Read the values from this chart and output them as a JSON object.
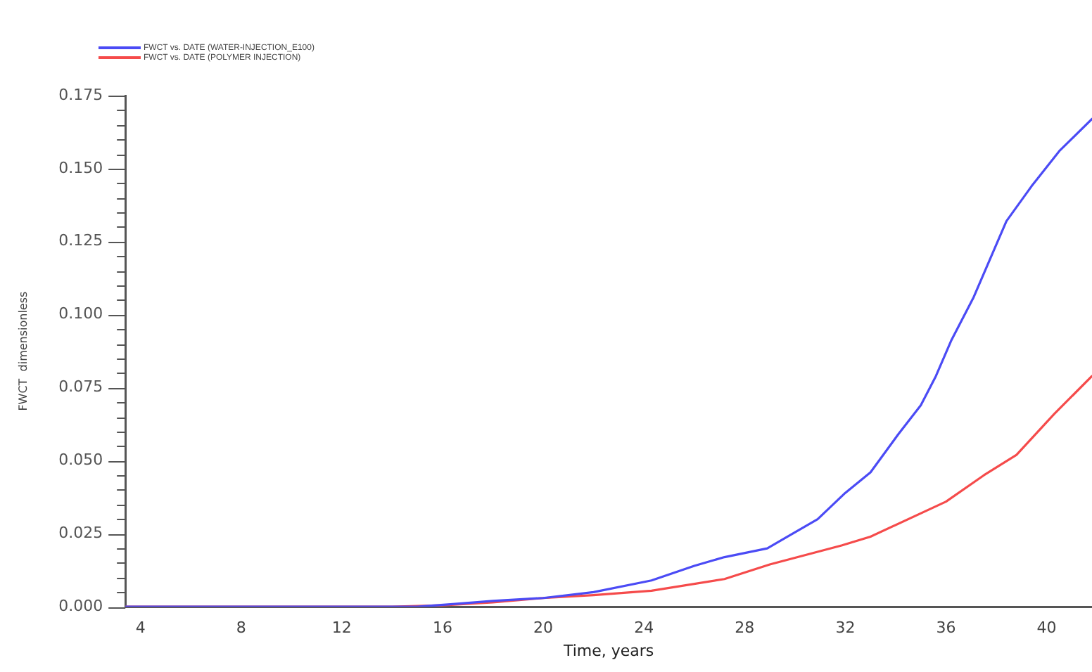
{
  "chart_data": {
    "type": "line",
    "xlabel": "Time, years",
    "ylabel": "FWCT  dimensionless",
    "legend": "top left",
    "grid": false,
    "marker": "none",
    "line_style": "solid",
    "xlim": [
      3.4,
      41.8
    ],
    "xticks": [
      4,
      8,
      12,
      16,
      20,
      24,
      28,
      32,
      36,
      40
    ],
    "ylim": [
      0,
      0.175
    ],
    "yticks": [
      {
        "value": 0,
        "label": "0.000"
      },
      {
        "value": 0.005,
        "label": null
      },
      {
        "value": 0.01,
        "label": null
      },
      {
        "value": 0.015,
        "label": null
      },
      {
        "value": 0.02,
        "label": null
      },
      {
        "value": 0.025,
        "label": "0.025"
      },
      {
        "value": 0.03,
        "label": null
      },
      {
        "value": 0.035,
        "label": null
      },
      {
        "value": 0.04,
        "label": null
      },
      {
        "value": 0.045,
        "label": null
      },
      {
        "value": 0.05,
        "label": "0.050"
      },
      {
        "value": 0.055,
        "label": null
      },
      {
        "value": 0.06,
        "label": null
      },
      {
        "value": 0.065,
        "label": null
      },
      {
        "value": 0.07,
        "label": null
      },
      {
        "value": 0.075,
        "label": "0.075"
      },
      {
        "value": 0.08,
        "label": null
      },
      {
        "value": 0.085,
        "label": null
      },
      {
        "value": 0.09,
        "label": null
      },
      {
        "value": 0.095,
        "label": null
      },
      {
        "value": 0.1,
        "label": "0.100"
      },
      {
        "value": 0.105,
        "label": null
      },
      {
        "value": 0.11,
        "label": null
      },
      {
        "value": 0.115,
        "label": null
      },
      {
        "value": 0.12,
        "label": null
      },
      {
        "value": 0.125,
        "label": "0.125"
      },
      {
        "value": 0.13,
        "label": null
      },
      {
        "value": 0.135,
        "label": null
      },
      {
        "value": 0.14,
        "label": null
      },
      {
        "value": 0.145,
        "label": null
      },
      {
        "value": 0.15,
        "label": "0.150"
      },
      {
        "value": 0.155,
        "label": null
      },
      {
        "value": 0.16,
        "label": null
      },
      {
        "value": 0.165,
        "label": null
      },
      {
        "value": 0.17,
        "label": null
      },
      {
        "value": 0.175,
        "label": "0.175"
      }
    ],
    "series": [
      {
        "name": "FWCT vs. DATE (WATER-INJECTION_E100)",
        "color": "#4b4bf5",
        "x": [
          3.4,
          14,
          15,
          16.5,
          18,
          20,
          22,
          24.3,
          26,
          27.2,
          28.9,
          30.9,
          32,
          33,
          34.1,
          35,
          35.6,
          36.2,
          37.1,
          37.9,
          38.4,
          39.4,
          40.5,
          41.8
        ],
        "values": [
          0,
          0,
          0,
          0.001,
          0.002,
          0.003,
          0.005,
          0.009,
          0.014,
          0.017,
          0.02,
          0.03,
          0.039,
          0.046,
          0.059,
          0.069,
          0.079,
          0.091,
          0.106,
          0.122,
          0.132,
          0.144,
          0.156,
          0.167
        ]
      },
      {
        "name": "FWCT vs. DATE (POLYMER INJECTION)",
        "color": "#f54b4b",
        "x": [
          3.4,
          14,
          16,
          18,
          20,
          22,
          24.3,
          27.2,
          29,
          31.85,
          33,
          36,
          37.5,
          38.8,
          40.3,
          41.8
        ],
        "values": [
          0,
          0,
          0.0005,
          0.0015,
          0.003,
          0.004,
          0.0055,
          0.0095,
          0.0145,
          0.021,
          0.024,
          0.036,
          0.045,
          0.052,
          0.066,
          0.079
        ]
      }
    ]
  }
}
